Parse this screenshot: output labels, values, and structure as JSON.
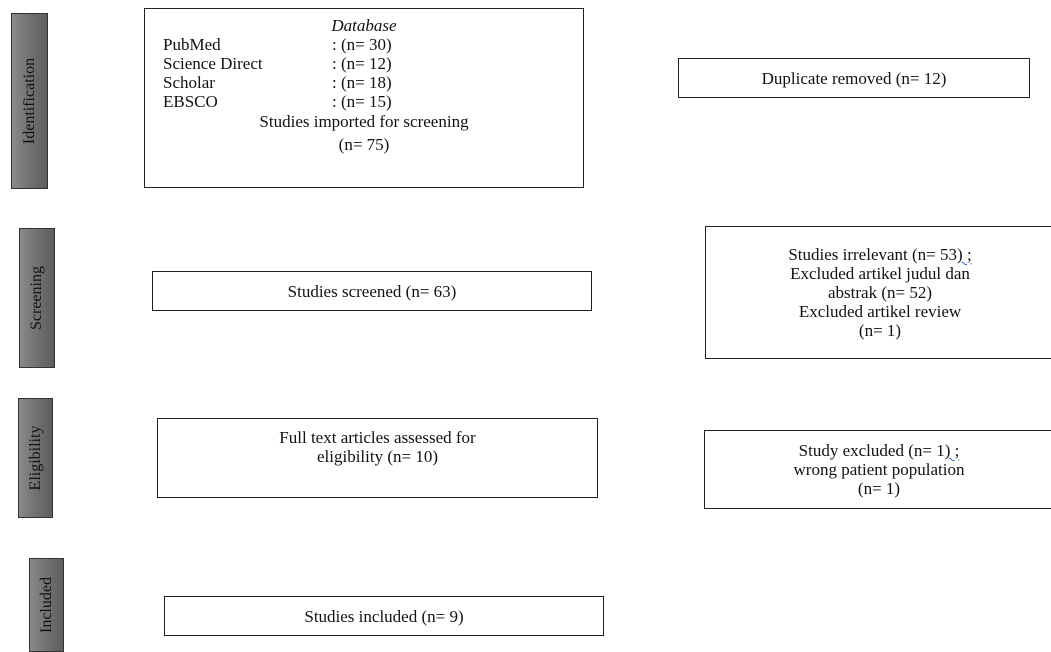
{
  "stages": {
    "identification": "Identification",
    "screening": "Screening",
    "eligibility": "Eligibility",
    "included": "Included"
  },
  "identification_box": {
    "heading": "Database",
    "sources": [
      {
        "name": "PubMed",
        "count": ": (n= 30)"
      },
      {
        "name": "Science Direct",
        "count": ": (n= 12)"
      },
      {
        "name": "Scholar",
        "count": ": (n= 18)"
      },
      {
        "name": "EBSCO",
        "count": ": (n= 15)"
      }
    ],
    "imported_line1": "Studies imported for screening",
    "imported_line2": "(n= 75)"
  },
  "duplicates_box": {
    "text": "Duplicate removed (n= 12)"
  },
  "screened_box": {
    "text": "Studies screened (n= 63)"
  },
  "irrelevant_box": {
    "line1_prefix": "Studies irrelevant (n= 53",
    "line1_marked": ") ;",
    "line2": "Excluded artikel judul dan",
    "line3": "abstrak (n= 52)",
    "line4": "Excluded artikel review",
    "line5": "(n= 1)"
  },
  "fulltext_box": {
    "line1": "Full text articles assessed for",
    "line2": "eligibility (n= 10)"
  },
  "excluded_box": {
    "line1_prefix": "Study excluded (n= 1",
    "line1_marked": ") ;",
    "line2": "wrong patient population",
    "line3": "(n= 1)"
  },
  "included_box": {
    "text": "Studies included (n= 9)"
  }
}
